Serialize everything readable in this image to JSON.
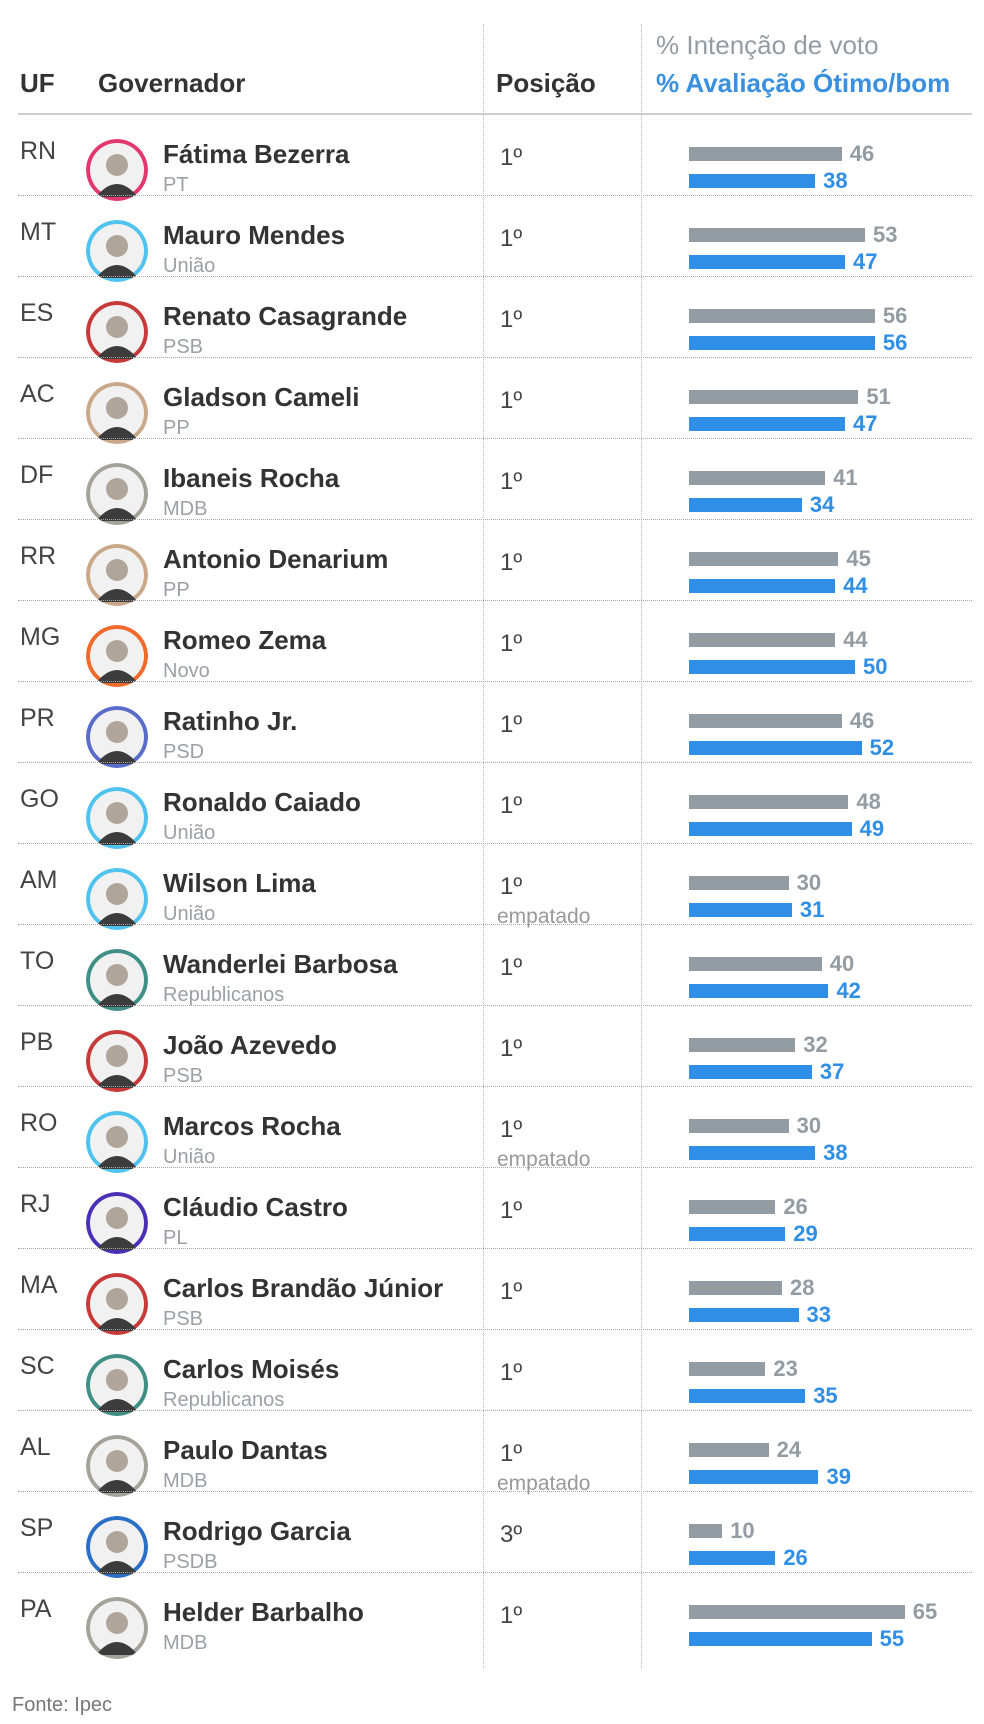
{
  "header": {
    "uf": "UF",
    "governador": "Governador",
    "posicao": "Posição",
    "intencao": "% Intenção de voto",
    "avaliacao": "% Avaliação Ótimo/bom"
  },
  "colors": {
    "intencao": "#939ba3",
    "avaliacao": "#2f8ee5"
  },
  "chart_data": {
    "type": "bar",
    "categories": [
      "RN",
      "MT",
      "ES",
      "AC",
      "DF",
      "RR",
      "MG",
      "PR",
      "GO",
      "AM",
      "TO",
      "PB",
      "RO",
      "RJ",
      "MA",
      "SC",
      "AL",
      "SP",
      "PA"
    ],
    "series": [
      {
        "name": "% Intenção de voto",
        "values": [
          46,
          53,
          56,
          51,
          41,
          45,
          44,
          46,
          48,
          30,
          40,
          32,
          30,
          26,
          28,
          23,
          24,
          10,
          65
        ]
      },
      {
        "name": "% Avaliação Ótimo/bom",
        "values": [
          38,
          47,
          56,
          47,
          34,
          44,
          50,
          52,
          49,
          31,
          42,
          37,
          38,
          29,
          33,
          35,
          39,
          26,
          55
        ]
      }
    ],
    "xlim": [
      0,
      65
    ]
  },
  "rows": [
    {
      "uf": "RN",
      "name": "Fátima Bezerra",
      "party": "PT",
      "pos": "1º",
      "note": "",
      "int": 46,
      "aval": 38,
      "ring": "#e3386e"
    },
    {
      "uf": "MT",
      "name": "Mauro Mendes",
      "party": "União",
      "pos": "1º",
      "note": "",
      "int": 53,
      "aval": 47,
      "ring": "#4fc3ee"
    },
    {
      "uf": "ES",
      "name": "Renato Casagrande",
      "party": "PSB",
      "pos": "1º",
      "note": "",
      "int": 56,
      "aval": 56,
      "ring": "#c73a3a"
    },
    {
      "uf": "AC",
      "name": "Gladson Cameli",
      "party": "PP",
      "pos": "1º",
      "note": "",
      "int": 51,
      "aval": 47,
      "ring": "#c9a88a"
    },
    {
      "uf": "DF",
      "name": "Ibaneis Rocha",
      "party": "MDB",
      "pos": "1º",
      "note": "",
      "int": 41,
      "aval": 34,
      "ring": "#a3a39a"
    },
    {
      "uf": "RR",
      "name": "Antonio Denarium",
      "party": "PP",
      "pos": "1º",
      "note": "",
      "int": 45,
      "aval": 44,
      "ring": "#c9a88a"
    },
    {
      "uf": "MG",
      "name": "Romeo Zema",
      "party": "Novo",
      "pos": "1º",
      "note": "",
      "int": 44,
      "aval": 50,
      "ring": "#f06a2c"
    },
    {
      "uf": "PR",
      "name": "Ratinho Jr.",
      "party": "PSD",
      "pos": "1º",
      "note": "",
      "int": 46,
      "aval": 52,
      "ring": "#5a6cc9"
    },
    {
      "uf": "GO",
      "name": "Ronaldo Caiado",
      "party": "União",
      "pos": "1º",
      "note": "",
      "int": 48,
      "aval": 49,
      "ring": "#4fc3ee"
    },
    {
      "uf": "AM",
      "name": "Wilson Lima",
      "party": "União",
      "pos": "1º",
      "note": "empatado",
      "int": 30,
      "aval": 31,
      "ring": "#4fc3ee"
    },
    {
      "uf": "TO",
      "name": "Wanderlei Barbosa",
      "party": "Republicanos",
      "pos": "1º",
      "note": "",
      "int": 40,
      "aval": 42,
      "ring": "#3f8f86"
    },
    {
      "uf": "PB",
      "name": "João Azevedo",
      "party": "PSB",
      "pos": "1º",
      "note": "",
      "int": 32,
      "aval": 37,
      "ring": "#c73a3a"
    },
    {
      "uf": "RO",
      "name": "Marcos Rocha",
      "party": "União",
      "pos": "1º",
      "note": "empatado",
      "int": 30,
      "aval": 38,
      "ring": "#4fc3ee"
    },
    {
      "uf": "RJ",
      "name": "Cláudio Castro",
      "party": "PL",
      "pos": "1º",
      "note": "",
      "int": 26,
      "aval": 29,
      "ring": "#4b2fb5"
    },
    {
      "uf": "MA",
      "name": "Carlos Brandão Júnior",
      "party": "PSB",
      "pos": "1º",
      "note": "",
      "int": 28,
      "aval": 33,
      "ring": "#c73a3a"
    },
    {
      "uf": "SC",
      "name": "Carlos Moisés",
      "party": "Republicanos",
      "pos": "1º",
      "note": "",
      "int": 23,
      "aval": 35,
      "ring": "#3f8f86"
    },
    {
      "uf": "AL",
      "name": "Paulo Dantas",
      "party": "MDB",
      "pos": "1º",
      "note": "empatado",
      "int": 24,
      "aval": 39,
      "ring": "#a3a39a"
    },
    {
      "uf": "SP",
      "name": "Rodrigo Garcia",
      "party": "PSDB",
      "pos": "3º",
      "note": "",
      "int": 10,
      "aval": 26,
      "ring": "#2a6fc4"
    },
    {
      "uf": "PA",
      "name": "Helder Barbalho",
      "party": "MDB",
      "pos": "1º",
      "note": "",
      "int": 65,
      "aval": 55,
      "ring": "#a3a39a"
    }
  ],
  "footer": "Fonte: Ipec"
}
